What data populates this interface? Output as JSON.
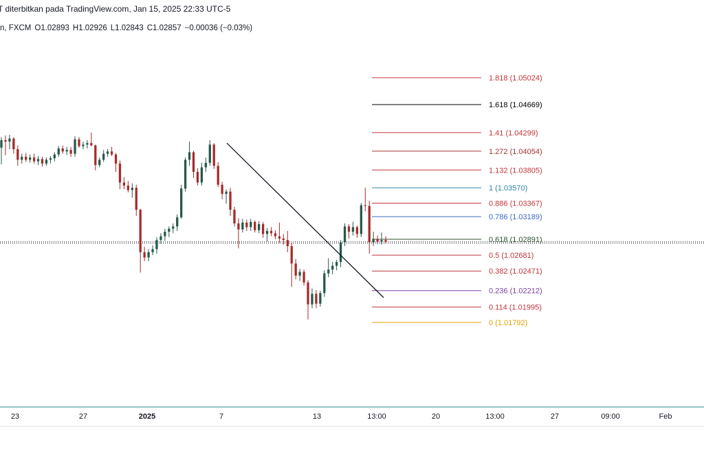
{
  "header": {
    "published": "T diterbitkan pada TradingView.com, Jan 15, 2025 22:33 UTC-5",
    "symbol": "n, FXCM",
    "open": "O1.02893",
    "high": "H1.02926",
    "low": "L1.02843",
    "close": "C1.02857",
    "change": "−0.00036 (−0.03%)"
  },
  "colors": {
    "up": "#26584a",
    "down": "#a52a2a",
    "axis_line": "#2a8a8a"
  },
  "chart_data": {
    "type": "candlestick",
    "x_ticks": [
      {
        "label": "23",
        "bold": false
      },
      {
        "label": "27",
        "bold": false
      },
      {
        "label": "2025",
        "bold": true
      },
      {
        "label": "7",
        "bold": false
      },
      {
        "label": "13",
        "bold": false
      },
      {
        "label": "13:00",
        "bold": false
      },
      {
        "label": "20",
        "bold": false
      },
      {
        "label": "13:00",
        "bold": false
      },
      {
        "label": "27",
        "bold": false
      },
      {
        "label": "09:00",
        "bold": false
      },
      {
        "label": "Feb",
        "bold": false
      }
    ],
    "current_price": 1.02857,
    "trendline": {
      "from": 1.0416,
      "to": 1.0212
    },
    "fib_levels": [
      {
        "level": "1.818",
        "price": 1.05024,
        "color": "#c2353c"
      },
      {
        "level": "1.618",
        "price": 1.04669,
        "color": "#000000"
      },
      {
        "level": "1.41",
        "price": 1.04299,
        "color": "#c2353c"
      },
      {
        "level": "1.272",
        "price": 1.04054,
        "color": "#a83232"
      },
      {
        "level": "1.132",
        "price": 1.03805,
        "color": "#c2353c"
      },
      {
        "level": "1",
        "price": 1.0357,
        "color": "#2a86a8"
      },
      {
        "level": "0.886",
        "price": 1.03367,
        "color": "#c2353c"
      },
      {
        "level": "0.786",
        "price": 1.03189,
        "color": "#3a6bc4"
      },
      {
        "level": "0.618",
        "price": 1.02891,
        "color": "#2f4f2f"
      },
      {
        "level": "0.5",
        "price": 1.02681,
        "color": "#c2353c"
      },
      {
        "level": "0.382",
        "price": 1.02471,
        "color": "#c2353c"
      },
      {
        "level": "0.236",
        "price": 1.02212,
        "color": "#7b3fa0"
      },
      {
        "level": "0.114",
        "price": 1.01995,
        "color": "#c2353c"
      },
      {
        "level": "0",
        "price": 1.01792,
        "color": "#e0a000"
      }
    ],
    "candles": [
      {
        "o": 1.041,
        "h": 1.0424,
        "l": 1.0388,
        "c": 1.042
      },
      {
        "o": 1.042,
        "h": 1.0426,
        "l": 1.04,
        "c": 1.0418
      },
      {
        "o": 1.0418,
        "h": 1.0427,
        "l": 1.0408,
        "c": 1.0422
      },
      {
        "o": 1.0422,
        "h": 1.0424,
        "l": 1.0402,
        "c": 1.0408
      },
      {
        "o": 1.0408,
        "h": 1.0413,
        "l": 1.0386,
        "c": 1.0394
      },
      {
        "o": 1.0394,
        "h": 1.0402,
        "l": 1.0389,
        "c": 1.0398
      },
      {
        "o": 1.0398,
        "h": 1.0403,
        "l": 1.0391,
        "c": 1.0394
      },
      {
        "o": 1.0394,
        "h": 1.0401,
        "l": 1.039,
        "c": 1.0397
      },
      {
        "o": 1.0397,
        "h": 1.0402,
        "l": 1.0389,
        "c": 1.0392
      },
      {
        "o": 1.0392,
        "h": 1.0399,
        "l": 1.0387,
        "c": 1.0395
      },
      {
        "o": 1.0395,
        "h": 1.0398,
        "l": 1.0385,
        "c": 1.0389
      },
      {
        "o": 1.0389,
        "h": 1.0397,
        "l": 1.0386,
        "c": 1.0394
      },
      {
        "o": 1.0394,
        "h": 1.0399,
        "l": 1.0389,
        "c": 1.0396
      },
      {
        "o": 1.0396,
        "h": 1.0404,
        "l": 1.0392,
        "c": 1.0401
      },
      {
        "o": 1.0401,
        "h": 1.0412,
        "l": 1.0398,
        "c": 1.0409
      },
      {
        "o": 1.0409,
        "h": 1.0413,
        "l": 1.0402,
        "c": 1.0405
      },
      {
        "o": 1.0405,
        "h": 1.0411,
        "l": 1.04,
        "c": 1.0407
      },
      {
        "o": 1.0407,
        "h": 1.0411,
        "l": 1.0398,
        "c": 1.0402
      },
      {
        "o": 1.0402,
        "h": 1.0425,
        "l": 1.0398,
        "c": 1.0421
      },
      {
        "o": 1.0421,
        "h": 1.0424,
        "l": 1.041,
        "c": 1.0412
      },
      {
        "o": 1.0412,
        "h": 1.0418,
        "l": 1.0408,
        "c": 1.0414
      },
      {
        "o": 1.0414,
        "h": 1.042,
        "l": 1.0409,
        "c": 1.0416
      },
      {
        "o": 1.0416,
        "h": 1.043,
        "l": 1.0412,
        "c": 1.0413
      },
      {
        "o": 1.0413,
        "h": 1.0414,
        "l": 1.038,
        "c": 1.0387
      },
      {
        "o": 1.0387,
        "h": 1.0397,
        "l": 1.0384,
        "c": 1.0394
      },
      {
        "o": 1.0394,
        "h": 1.0407,
        "l": 1.0391,
        "c": 1.0402
      },
      {
        "o": 1.0402,
        "h": 1.0408,
        "l": 1.0398,
        "c": 1.0405
      },
      {
        "o": 1.0405,
        "h": 1.0411,
        "l": 1.0399,
        "c": 1.0401
      },
      {
        "o": 1.0401,
        "h": 1.0403,
        "l": 1.0378,
        "c": 1.0389
      },
      {
        "o": 1.0389,
        "h": 1.0393,
        "l": 1.0355,
        "c": 1.0364
      },
      {
        "o": 1.0364,
        "h": 1.0371,
        "l": 1.0355,
        "c": 1.036
      },
      {
        "o": 1.036,
        "h": 1.0366,
        "l": 1.0351,
        "c": 1.0354
      },
      {
        "o": 1.0354,
        "h": 1.0363,
        "l": 1.0344,
        "c": 1.0357
      },
      {
        "o": 1.0357,
        "h": 1.0361,
        "l": 1.032,
        "c": 1.0328
      },
      {
        "o": 1.0328,
        "h": 1.0329,
        "l": 1.0245,
        "c": 1.0272
      },
      {
        "o": 1.0272,
        "h": 1.0279,
        "l": 1.026,
        "c": 1.0265
      },
      {
        "o": 1.0265,
        "h": 1.0276,
        "l": 1.026,
        "c": 1.0272
      },
      {
        "o": 1.0272,
        "h": 1.0281,
        "l": 1.0268,
        "c": 1.0276
      },
      {
        "o": 1.0276,
        "h": 1.0292,
        "l": 1.027,
        "c": 1.0288
      },
      {
        "o": 1.0288,
        "h": 1.0297,
        "l": 1.0283,
        "c": 1.0293
      },
      {
        "o": 1.0293,
        "h": 1.0303,
        "l": 1.0287,
        "c": 1.0299
      },
      {
        "o": 1.0299,
        "h": 1.0306,
        "l": 1.0292,
        "c": 1.0303
      },
      {
        "o": 1.0303,
        "h": 1.031,
        "l": 1.0297,
        "c": 1.0306
      },
      {
        "o": 1.0306,
        "h": 1.0322,
        "l": 1.03,
        "c": 1.0318
      },
      {
        "o": 1.0318,
        "h": 1.0361,
        "l": 1.0316,
        "c": 1.0356
      },
      {
        "o": 1.0356,
        "h": 1.0397,
        "l": 1.0352,
        "c": 1.0394
      },
      {
        "o": 1.0394,
        "h": 1.0418,
        "l": 1.0386,
        "c": 1.0404
      },
      {
        "o": 1.0404,
        "h": 1.0406,
        "l": 1.037,
        "c": 1.0378
      },
      {
        "o": 1.0378,
        "h": 1.0383,
        "l": 1.036,
        "c": 1.0364
      },
      {
        "o": 1.0364,
        "h": 1.039,
        "l": 1.036,
        "c": 1.0384
      },
      {
        "o": 1.0384,
        "h": 1.0397,
        "l": 1.0378,
        "c": 1.039
      },
      {
        "o": 1.039,
        "h": 1.042,
        "l": 1.0386,
        "c": 1.0414
      },
      {
        "o": 1.0414,
        "h": 1.0416,
        "l": 1.0382,
        "c": 1.0386
      },
      {
        "o": 1.0386,
        "h": 1.0391,
        "l": 1.0358,
        "c": 1.0361
      },
      {
        "o": 1.0361,
        "h": 1.0365,
        "l": 1.0342,
        "c": 1.0349
      },
      {
        "o": 1.0349,
        "h": 1.0355,
        "l": 1.0336,
        "c": 1.0352
      },
      {
        "o": 1.0352,
        "h": 1.0357,
        "l": 1.032,
        "c": 1.0328
      },
      {
        "o": 1.0328,
        "h": 1.0332,
        "l": 1.0306,
        "c": 1.031
      },
      {
        "o": 1.031,
        "h": 1.0317,
        "l": 1.0277,
        "c": 1.0302
      },
      {
        "o": 1.0302,
        "h": 1.0316,
        "l": 1.0298,
        "c": 1.0311
      },
      {
        "o": 1.0311,
        "h": 1.0315,
        "l": 1.03,
        "c": 1.0305
      },
      {
        "o": 1.0305,
        "h": 1.0316,
        "l": 1.03,
        "c": 1.0312
      },
      {
        "o": 1.0312,
        "h": 1.0314,
        "l": 1.0298,
        "c": 1.0301
      },
      {
        "o": 1.0301,
        "h": 1.0313,
        "l": 1.0297,
        "c": 1.0309
      },
      {
        "o": 1.0309,
        "h": 1.0312,
        "l": 1.0291,
        "c": 1.0296
      },
      {
        "o": 1.0296,
        "h": 1.0304,
        "l": 1.0286,
        "c": 1.03
      },
      {
        "o": 1.03,
        "h": 1.0305,
        "l": 1.0293,
        "c": 1.0297
      },
      {
        "o": 1.0297,
        "h": 1.0301,
        "l": 1.0289,
        "c": 1.0293
      },
      {
        "o": 1.0293,
        "h": 1.0311,
        "l": 1.0284,
        "c": 1.029
      },
      {
        "o": 1.029,
        "h": 1.0296,
        "l": 1.0282,
        "c": 1.0288
      },
      {
        "o": 1.0288,
        "h": 1.03,
        "l": 1.0272,
        "c": 1.028
      },
      {
        "o": 1.028,
        "h": 1.0284,
        "l": 1.0226,
        "c": 1.0257
      },
      {
        "o": 1.0257,
        "h": 1.0263,
        "l": 1.0236,
        "c": 1.0241
      },
      {
        "o": 1.0241,
        "h": 1.025,
        "l": 1.0234,
        "c": 1.0246
      },
      {
        "o": 1.0246,
        "h": 1.0249,
        "l": 1.0228,
        "c": 1.0232
      },
      {
        "o": 1.0232,
        "h": 1.0235,
        "l": 1.0183,
        "c": 1.0203
      },
      {
        "o": 1.0203,
        "h": 1.0224,
        "l": 1.0198,
        "c": 1.0217
      },
      {
        "o": 1.0217,
        "h": 1.0222,
        "l": 1.0198,
        "c": 1.0204
      },
      {
        "o": 1.0204,
        "h": 1.0221,
        "l": 1.02,
        "c": 1.0218
      },
      {
        "o": 1.0218,
        "h": 1.0248,
        "l": 1.0213,
        "c": 1.0244
      },
      {
        "o": 1.0244,
        "h": 1.0264,
        "l": 1.0239,
        "c": 1.0249
      },
      {
        "o": 1.0249,
        "h": 1.0259,
        "l": 1.0243,
        "c": 1.0254
      },
      {
        "o": 1.0254,
        "h": 1.0262,
        "l": 1.0248,
        "c": 1.0259
      },
      {
        "o": 1.0259,
        "h": 1.0288,
        "l": 1.0252,
        "c": 1.0285
      },
      {
        "o": 1.0285,
        "h": 1.031,
        "l": 1.028,
        "c": 1.0306
      },
      {
        "o": 1.0306,
        "h": 1.0309,
        "l": 1.029,
        "c": 1.0299
      },
      {
        "o": 1.0299,
        "h": 1.0312,
        "l": 1.0294,
        "c": 1.0305
      },
      {
        "o": 1.0305,
        "h": 1.0307,
        "l": 1.0291,
        "c": 1.0296
      },
      {
        "o": 1.0296,
        "h": 1.0337,
        "l": 1.0292,
        "c": 1.0334
      },
      {
        "o": 1.0334,
        "h": 1.0357,
        "l": 1.0326,
        "c": 1.0333
      },
      {
        "o": 1.0333,
        "h": 1.034,
        "l": 1.027,
        "c": 1.0285
      },
      {
        "o": 1.0285,
        "h": 1.0299,
        "l": 1.028,
        "c": 1.0289
      },
      {
        "o": 1.0289,
        "h": 1.0294,
        "l": 1.0283,
        "c": 1.0286
      },
      {
        "o": 1.0286,
        "h": 1.0298,
        "l": 1.0282,
        "c": 1.0288
      },
      {
        "o": 1.0288,
        "h": 1.0293,
        "l": 1.0284,
        "c": 1.0286
      }
    ]
  }
}
